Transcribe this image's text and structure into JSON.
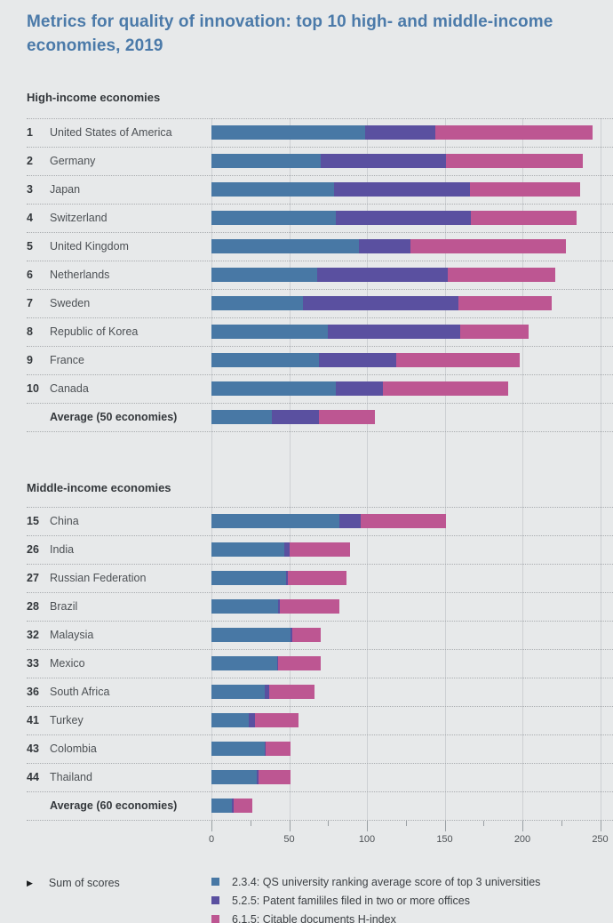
{
  "title": "Metrics for quality of innovation: top 10 high- and middle-income economies, 2019",
  "legend": {
    "note": "Sum of scores",
    "items": [
      {
        "label": "2.3.4: QS university ranking average score of top 3 universities",
        "color": "#4878a5"
      },
      {
        "label": "5.2.5: Patent famililes filed in two or more offices",
        "color": "#5a50a0"
      },
      {
        "label": "6.1.5: Citable documents H-index",
        "color": "#bd5692"
      }
    ]
  },
  "chart_data": {
    "type": "bar",
    "orientation": "horizontal",
    "stacked": true,
    "grid": true,
    "legend_position": "bottom",
    "series": [
      "2.3.4: QS university ranking average score of top 3 universities",
      "5.2.5: Patent famililes filed in two or more offices",
      "6.1.5: Citable documents H-index"
    ],
    "colors": [
      "#4878a5",
      "#5a50a0",
      "#bd5692"
    ],
    "axis": {
      "min": 0,
      "max": 250,
      "major_ticks": [
        0,
        50,
        100,
        150,
        200,
        250
      ],
      "minor_tick_interval": 25
    },
    "sections": [
      {
        "label": "High-income economies",
        "rows": [
          {
            "rank": "1",
            "name": "United States of America",
            "values": [
              99,
              45,
              101
            ]
          },
          {
            "rank": "2",
            "name": "Germany",
            "values": [
              70,
              81,
              88
            ]
          },
          {
            "rank": "3",
            "name": "Japan",
            "values": [
              79,
              87,
              71
            ]
          },
          {
            "rank": "4",
            "name": "Switzerland",
            "values": [
              80,
              87,
              68
            ]
          },
          {
            "rank": "5",
            "name": "United Kingdom",
            "values": [
              95,
              33,
              100
            ]
          },
          {
            "rank": "6",
            "name": "Netherlands",
            "values": [
              68,
              84,
              69
            ]
          },
          {
            "rank": "7",
            "name": "Sweden",
            "values": [
              59,
              100,
              60
            ]
          },
          {
            "rank": "8",
            "name": "Republic of Korea",
            "values": [
              75,
              85,
              44
            ]
          },
          {
            "rank": "9",
            "name": "France",
            "values": [
              69,
              50,
              79
            ]
          },
          {
            "rank": "10",
            "name": "Canada",
            "values": [
              80,
              30,
              81
            ]
          },
          {
            "rank": "",
            "name": "Average (50 economies)",
            "values": [
              39,
              30,
              36
            ]
          }
        ]
      },
      {
        "label": "Middle-income economies",
        "rows": [
          {
            "rank": "15",
            "name": "China",
            "values": [
              82,
              14,
              55
            ]
          },
          {
            "rank": "26",
            "name": "India",
            "values": [
              47,
              3,
              39
            ]
          },
          {
            "rank": "27",
            "name": "Russian Federation",
            "values": [
              48,
              1,
              38
            ]
          },
          {
            "rank": "28",
            "name": "Brazil",
            "values": [
              43,
              1,
              38
            ]
          },
          {
            "rank": "32",
            "name": "Malaysia",
            "values": [
              51,
              1,
              18
            ]
          },
          {
            "rank": "33",
            "name": "Mexico",
            "values": [
              42,
              1,
              27
            ]
          },
          {
            "rank": "36",
            "name": "South Africa",
            "values": [
              34,
              3,
              29
            ]
          },
          {
            "rank": "41",
            "name": "Turkey",
            "values": [
              24,
              4,
              28
            ]
          },
          {
            "rank": "43",
            "name": "Colombia",
            "values": [
              34,
              1,
              16
            ]
          },
          {
            "rank": "44",
            "name": "Thailand",
            "values": [
              29,
              1,
              21
            ]
          },
          {
            "rank": "",
            "name": "Average (60 economies)",
            "values": [
              13,
              1,
              12
            ]
          }
        ]
      }
    ]
  }
}
